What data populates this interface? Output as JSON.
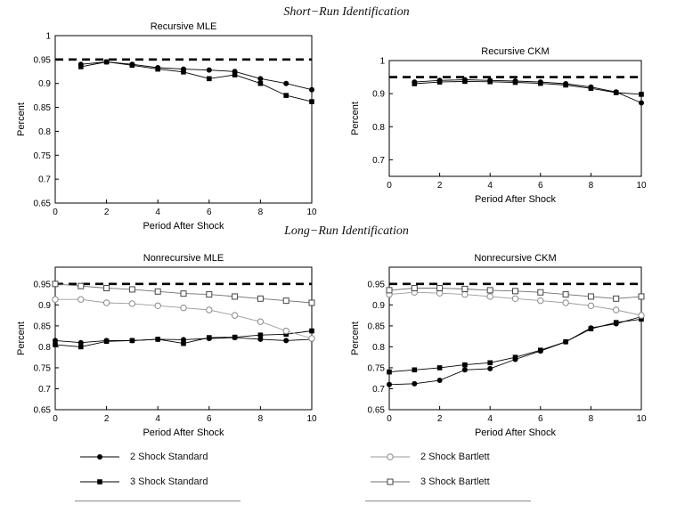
{
  "page": {
    "background": "#ffffff"
  },
  "sections": {
    "short_run_title": "Short−Run Identification",
    "long_run_title": "Long−Run Identification"
  },
  "legend": {
    "left": [
      {
        "label": "2 Shock Standard",
        "marker": "filled-circle",
        "line_color": "#000000",
        "marker_color": "#000000"
      },
      {
        "label": "3 Shock Standard",
        "marker": "filled-square",
        "line_color": "#000000",
        "marker_color": "#000000"
      }
    ],
    "right": [
      {
        "label": "2 Shock Bartlett",
        "marker": "open-circle",
        "line_color": "#9a9a9a",
        "marker_color": "#8a8a8a"
      },
      {
        "label": "3 Shock Bartlett",
        "marker": "open-square",
        "line_color": "#6f6f6f",
        "marker_color": "#444444"
      }
    ]
  },
  "chart_data": [
    {
      "type": "line",
      "title": "Recursive MLE",
      "xlabel": "Period After Shock",
      "ylabel": "Percent",
      "xlim": [
        0,
        10
      ],
      "ylim": [
        0.65,
        1.0
      ],
      "xticks": [
        0,
        2,
        4,
        6,
        8,
        10
      ],
      "ytick_values": [
        0.65,
        0.7,
        0.75,
        0.8,
        0.85,
        0.9,
        0.95,
        1
      ],
      "ytick_labels": [
        "0.65",
        "0.7",
        "0.75",
        "0.8",
        "0.85",
        "0.9",
        "0.95",
        "1"
      ],
      "grid": false,
      "reference_line": {
        "y": 0.95,
        "style": "dashed",
        "color": "#000000"
      },
      "x": [
        1,
        2,
        3,
        4,
        5,
        6,
        7,
        8,
        9,
        10
      ],
      "series": [
        {
          "name": "2 Shock Standard",
          "marker": "filled-circle",
          "color": "#000000",
          "marker_color": "#000000",
          "values": [
            0.94,
            0.945,
            0.94,
            0.933,
            0.93,
            0.928,
            0.925,
            0.91,
            0.9,
            0.887
          ]
        },
        {
          "name": "3 Shock Standard",
          "marker": "filled-square",
          "color": "#000000",
          "marker_color": "#000000",
          "values": [
            0.935,
            0.945,
            0.938,
            0.93,
            0.924,
            0.91,
            0.918,
            0.9,
            0.875,
            0.862
          ]
        }
      ]
    },
    {
      "type": "line",
      "title": "Recursive CKM",
      "xlabel": "Period After Shock",
      "ylabel": "Percent",
      "xlim": [
        0,
        10
      ],
      "ylim": [
        0.65,
        1.0
      ],
      "xticks": [
        0,
        2,
        4,
        6,
        8,
        10
      ],
      "ytick_values": [
        0.7,
        0.8,
        0.9,
        1
      ],
      "ytick_labels": [
        "0.7",
        "0.8",
        "0.9",
        "1"
      ],
      "grid": false,
      "reference_line": {
        "y": 0.95,
        "style": "dashed",
        "color": "#000000"
      },
      "x": [
        1,
        2,
        3,
        4,
        5,
        6,
        7,
        8,
        9,
        10
      ],
      "series": [
        {
          "name": "2 Shock Standard",
          "marker": "filled-circle",
          "color": "#000000",
          "marker_color": "#000000",
          "values": [
            0.935,
            0.94,
            0.942,
            0.94,
            0.938,
            0.935,
            0.93,
            0.92,
            0.905,
            0.872
          ]
        },
        {
          "name": "3 Shock Standard",
          "marker": "filled-square",
          "color": "#000000",
          "marker_color": "#000000",
          "values": [
            0.93,
            0.935,
            0.937,
            0.936,
            0.934,
            0.931,
            0.926,
            0.916,
            0.903,
            0.898
          ]
        }
      ]
    },
    {
      "type": "line",
      "title": "Nonrecursive MLE",
      "xlabel": "Period After Shock",
      "ylabel": "Percent",
      "xlim": [
        0,
        10
      ],
      "ylim": [
        0.65,
        0.99
      ],
      "xticks": [
        0,
        2,
        4,
        6,
        8,
        10
      ],
      "ytick_values": [
        0.65,
        0.7,
        0.75,
        0.8,
        0.85,
        0.9,
        0.95
      ],
      "ytick_labels": [
        "0.65",
        "0.7",
        "0.75",
        "0.8",
        "0.85",
        "0.9",
        "0.95"
      ],
      "grid": false,
      "reference_line": {
        "y": 0.95,
        "style": "dashed",
        "color": "#000000"
      },
      "x": [
        0,
        1,
        2,
        3,
        4,
        5,
        6,
        7,
        8,
        9,
        10
      ],
      "series": [
        {
          "name": "2 Shock Standard",
          "marker": "filled-circle",
          "color": "#000000",
          "marker_color": "#000000",
          "values": [
            0.815,
            0.81,
            0.815,
            0.815,
            0.818,
            0.817,
            0.82,
            0.822,
            0.818,
            0.815,
            0.818
          ]
        },
        {
          "name": "3 Shock Standard",
          "marker": "filled-square",
          "color": "#000000",
          "marker_color": "#000000",
          "values": [
            0.805,
            0.8,
            0.813,
            0.815,
            0.818,
            0.808,
            0.822,
            0.823,
            0.828,
            0.83,
            0.838
          ]
        },
        {
          "name": "2 Shock Bartlett",
          "marker": "open-circle",
          "color": "#9a9a9a",
          "marker_color": "#8a8a8a",
          "values": [
            0.913,
            0.913,
            0.905,
            0.903,
            0.898,
            0.893,
            0.888,
            0.875,
            0.86,
            0.838,
            0.82
          ]
        },
        {
          "name": "3 Shock Bartlett",
          "marker": "open-square",
          "color": "#6f6f6f",
          "marker_color": "#444444",
          "values": [
            0.95,
            0.945,
            0.94,
            0.937,
            0.932,
            0.927,
            0.925,
            0.92,
            0.915,
            0.91,
            0.905
          ]
        }
      ]
    },
    {
      "type": "line",
      "title": "Nonrecursive CKM",
      "xlabel": "Period After Shock",
      "ylabel": "Percent",
      "xlim": [
        0,
        10
      ],
      "ylim": [
        0.65,
        0.99
      ],
      "xticks": [
        0,
        2,
        4,
        6,
        8,
        10
      ],
      "ytick_values": [
        0.65,
        0.7,
        0.75,
        0.8,
        0.85,
        0.9,
        0.95
      ],
      "ytick_labels": [
        "0.65",
        "0.7",
        "0.75",
        "0.8",
        "0.85",
        "0.9",
        "0.95"
      ],
      "grid": false,
      "reference_line": {
        "y": 0.95,
        "style": "dashed",
        "color": "#000000"
      },
      "x": [
        0,
        1,
        2,
        3,
        4,
        5,
        6,
        7,
        8,
        9,
        10
      ],
      "series": [
        {
          "name": "2 Shock Standard",
          "marker": "filled-circle",
          "color": "#000000",
          "marker_color": "#000000",
          "values": [
            0.71,
            0.712,
            0.72,
            0.745,
            0.748,
            0.77,
            0.79,
            0.812,
            0.845,
            0.855,
            0.872
          ]
        },
        {
          "name": "3 Shock Standard",
          "marker": "filled-square",
          "color": "#000000",
          "marker_color": "#000000",
          "values": [
            0.74,
            0.745,
            0.75,
            0.757,
            0.762,
            0.775,
            0.792,
            0.812,
            0.843,
            0.858,
            0.866
          ]
        },
        {
          "name": "2 Shock Bartlett",
          "marker": "open-circle",
          "color": "#9a9a9a",
          "marker_color": "#8a8a8a",
          "values": [
            0.925,
            0.93,
            0.928,
            0.925,
            0.92,
            0.915,
            0.91,
            0.905,
            0.898,
            0.888,
            0.875
          ]
        },
        {
          "name": "3 Shock Bartlett",
          "marker": "open-square",
          "color": "#6f6f6f",
          "marker_color": "#444444",
          "values": [
            0.935,
            0.94,
            0.94,
            0.938,
            0.935,
            0.933,
            0.93,
            0.925,
            0.92,
            0.915,
            0.92
          ]
        }
      ]
    }
  ]
}
